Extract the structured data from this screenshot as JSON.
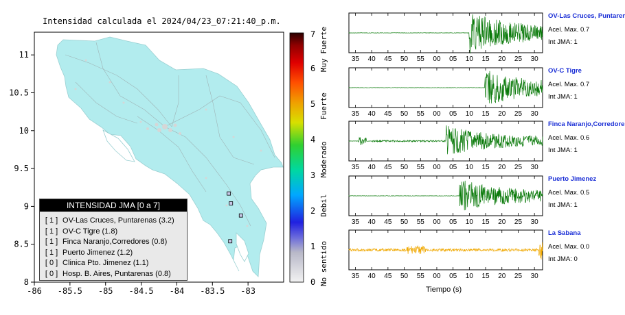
{
  "title": "Intensidad calculada el 2024/04/23_07:21:40_p.m.",
  "map": {
    "x_ticks": [
      "-86",
      "-85.5",
      "-85",
      "-84.5",
      "-84",
      "-83.5",
      "-83"
    ],
    "y_ticks": [
      "11",
      "10.5",
      "10",
      "9.5",
      "9",
      "8.5",
      "8"
    ],
    "lon_range": [
      -86,
      -82.5
    ],
    "lat_range": [
      8,
      11.3
    ],
    "land_color": "#b2ecee",
    "station_markers": [
      {
        "lon": -83.27,
        "lat": 9.17
      },
      {
        "lon": -83.24,
        "lat": 9.04
      },
      {
        "lon": -83.1,
        "lat": 8.88
      },
      {
        "lon": -83.25,
        "lat": 8.54
      }
    ]
  },
  "colorbar": {
    "ticks": [
      "0",
      "1",
      "2",
      "3",
      "4",
      "5",
      "6",
      "7"
    ],
    "labels": [
      "No sentido",
      "Debil",
      "Moderado",
      "Fuerte",
      "Muy Fuerte"
    ]
  },
  "legend": {
    "title": "INTENSIDAD JMA [0 a 7]",
    "rows": [
      {
        "int": "[ 1 ]",
        "name": "OV-Las Cruces, Puntarenas (3.2)"
      },
      {
        "int": "[ 1 ]",
        "name": "OV-C Tigre (1.8)"
      },
      {
        "int": "[ 1 ]",
        "name": "Finca Naranjo,Corredores (0.8)"
      },
      {
        "int": "[ 1 ]",
        "name": "Puerto Jimenez (1.2)"
      },
      {
        "int": "[ 0 ]",
        "name": "Clinica Pto. Jimenez (1.1)"
      },
      {
        "int": "[ 0 ]",
        "name": "Hosp. B. Aires, Puntarenas (0.8)"
      }
    ]
  },
  "stations": [
    {
      "name": "OV-Las Cruces, Puntarenas",
      "accel": "Acel. Max. 0.7",
      "jma": "Int JMA: 1",
      "color": "#0a7a0a",
      "ticks": [
        "35",
        "40",
        "45",
        "50",
        "55",
        "00",
        "05",
        "10",
        "15",
        "20",
        "25",
        "30"
      ],
      "onset": 0.62,
      "amp": 1.0
    },
    {
      "name": "OV-C Tigre",
      "accel": "Acel. Max. 0.7",
      "jma": "Int JMA: 1",
      "color": "#0a7a0a",
      "ticks": [
        "35",
        "40",
        "45",
        "50",
        "55",
        "00",
        "05",
        "10",
        "15",
        "20",
        "25",
        "30"
      ],
      "onset": 0.7,
      "amp": 0.9
    },
    {
      "name": "Finca Naranjo,Corredores",
      "accel": "Acel. Max. 0.6",
      "jma": "Int JMA: 1",
      "color": "#0a7a0a",
      "ticks": [
        "35",
        "40",
        "45",
        "50",
        "55",
        "00",
        "05",
        "10",
        "15",
        "20",
        "25",
        "30"
      ],
      "onset": 0.5,
      "amp": 0.75
    },
    {
      "name": "Puerto Jimenez",
      "accel": "Acel. Max. 0.5",
      "jma": "Int JMA: 1",
      "color": "#0a7a0a",
      "ticks": [
        "35",
        "40",
        "45",
        "50",
        "55",
        "00",
        "05",
        "10",
        "15",
        "20",
        "25",
        "30"
      ],
      "onset": 0.57,
      "amp": 0.8
    },
    {
      "name": "La Sabana",
      "accel": "Acel. Max. 0.0",
      "jma": "Int JMA: 0",
      "color": "#f0a800",
      "ticks": [
        "35",
        "40",
        "45",
        "50",
        "55",
        "00",
        "05",
        "10",
        "15",
        "20",
        "25",
        "30"
      ],
      "onset": -1,
      "amp": 0.25
    }
  ],
  "waveform_xlabel": "Tiempo (s)"
}
